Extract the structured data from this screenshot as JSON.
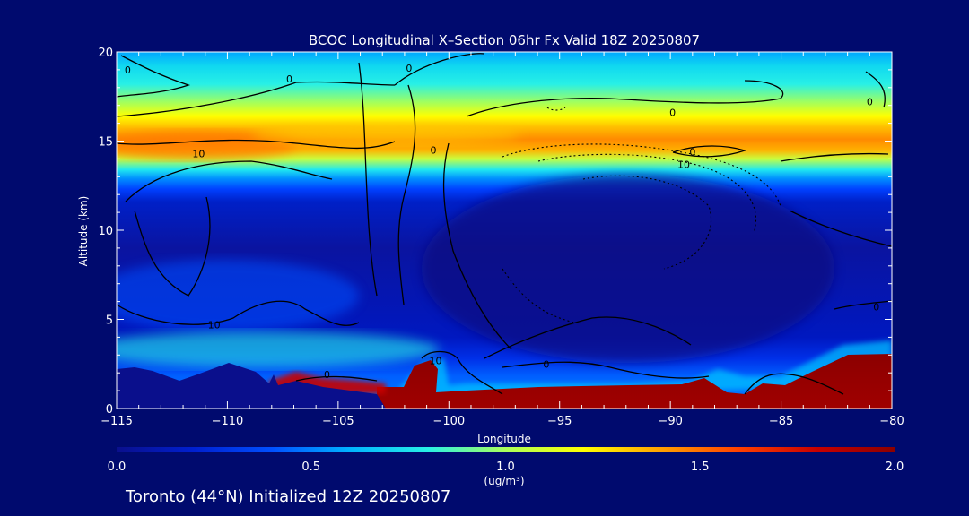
{
  "chart_data": {
    "type": "heatmap",
    "title": "BCOC Longitudinal X–Section 06hr  Fx Valid 18Z 20250807",
    "xlabel": "Longitude",
    "ylabel": "Altitude (km)",
    "xlim": [
      -115,
      -80
    ],
    "ylim": [
      0,
      20
    ],
    "x_ticks": [
      -115,
      -110,
      -105,
      -100,
      -95,
      -90,
      -85,
      -80
    ],
    "x_tick_labels": [
      "−115",
      "−110",
      "−105",
      "−100",
      "−95",
      "−90",
      "−85",
      "−80"
    ],
    "y_ticks": [
      0,
      5,
      10,
      15,
      20
    ],
    "y_tick_labels": [
      "0",
      "5",
      "10",
      "15",
      "20"
    ],
    "colorbar": {
      "min": 0.0,
      "max": 2.0,
      "ticks": [
        0.0,
        0.5,
        1.0,
        1.5,
        2.0
      ],
      "tick_labels": [
        "0.0",
        "0.5",
        "1.0",
        "1.5",
        "2.0"
      ],
      "unit_label": "(ug/m³)"
    },
    "colormap": [
      "#0a0f8c",
      "#0020d0",
      "#0050ff",
      "#00b4ff",
      "#28f0e6",
      "#aaff5a",
      "#ffff00",
      "#ffa000",
      "#ff4000",
      "#c80000",
      "#8c0000"
    ],
    "contour_labels": [
      {
        "text": "0",
        "lon": -114.5,
        "alt": 19.0
      },
      {
        "text": "0",
        "lon": -107.2,
        "alt": 18.5
      },
      {
        "text": "0",
        "lon": -101.8,
        "alt": 19.1
      },
      {
        "text": "0",
        "lon": -89.9,
        "alt": 16.6
      },
      {
        "text": "0",
        "lon": -81.0,
        "alt": 17.2
      },
      {
        "text": "10",
        "lon": -111.3,
        "alt": 14.3
      },
      {
        "text": "0",
        "lon": -100.7,
        "alt": 14.5
      },
      {
        "text": "0",
        "lon": -89.0,
        "alt": 14.4
      },
      {
        "text": "10",
        "lon": -89.4,
        "alt": 13.7
      },
      {
        "text": "10",
        "lon": -110.6,
        "alt": 4.7
      },
      {
        "text": "0",
        "lon": -80.7,
        "alt": 5.7
      },
      {
        "text": "10",
        "lon": -100.6,
        "alt": 2.7
      },
      {
        "text": "0",
        "lon": -95.6,
        "alt": 2.5
      },
      {
        "text": "0",
        "lon": -105.5,
        "alt": 1.9
      }
    ]
  },
  "footer": {
    "location": "Toronto (44°N) Initialized 12Z 20250807"
  }
}
